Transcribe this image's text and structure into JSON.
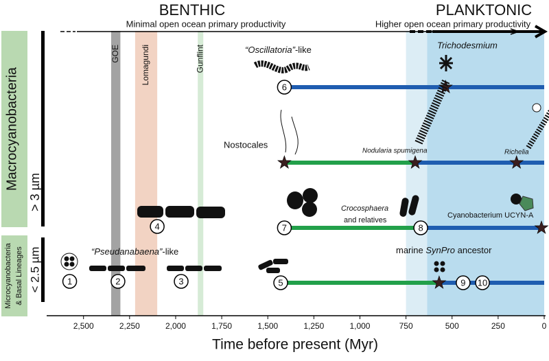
{
  "chart_data": {
    "type": "timeline",
    "headings": {
      "benthic": "BENTHIC",
      "planktonic": "PLANKTONIC"
    },
    "arrow_labels": [
      "Minimal open ocean primary productivity",
      "Higher open ocean primary productivity"
    ],
    "groups": [
      {
        "label": [
          "Macrocyanobacteria"
        ],
        "sublabel": "> 3 µm"
      },
      {
        "label": [
          "Microcyanobacteria",
          "& Basal Lineages"
        ],
        "sublabel": "< 2.5 µm"
      }
    ],
    "x_label": "Time before present (Myr)",
    "xlim": [
      2700,
      0
    ],
    "xticks": [
      {
        "value": 2500,
        "label": "2,500"
      },
      {
        "value": 2250,
        "label": "2,250"
      },
      {
        "value": 2000,
        "label": "2,000"
      },
      {
        "value": 1750,
        "label": "1,750"
      },
      {
        "value": 1500,
        "label": "1,500"
      },
      {
        "value": 1250,
        "label": "1,250"
      },
      {
        "value": 1000,
        "label": "1,000"
      },
      750,
      500,
      250,
      0
    ],
    "events": [
      {
        "name": "GOE",
        "start": 2350,
        "end": 2300,
        "color": "#a3a3a3"
      },
      {
        "name": "Lomagundi",
        "start": 2220,
        "end": 2100,
        "color": "#f2d3c3"
      },
      {
        "name": "Gunflint",
        "start": 1880,
        "end": 1850,
        "color": "#d6ebd6"
      }
    ],
    "planktonic_zones": [
      {
        "start": 750,
        "end": 635,
        "color": "#dcedf5"
      },
      {
        "start": 635,
        "end": 0,
        "color": "#b9dcee"
      }
    ],
    "lineages": [
      {
        "segments": [
          {
            "start": 1410,
            "end": 0,
            "color": "#1f5db0"
          }
        ],
        "stars": [
          535
        ]
      },
      {
        "segments": [
          {
            "start": 1410,
            "end": 700,
            "color": "#22a04a"
          },
          {
            "start": 700,
            "end": 0,
            "color": "#1f5db0"
          }
        ],
        "stars": [
          1410,
          700,
          150
        ]
      },
      {
        "segments": [
          {
            "start": 1410,
            "end": 670,
            "color": "#22a04a"
          },
          {
            "start": 670,
            "end": 0,
            "color": "#1f5db0"
          }
        ],
        "stars": [
          15
        ]
      },
      {
        "segments": [
          {
            "start": 1410,
            "end": 570,
            "color": "#22a04a"
          },
          {
            "start": 570,
            "end": 0,
            "color": "#1f5db0"
          }
        ],
        "stars": [
          570
        ]
      }
    ],
    "nodes": [
      {
        "label": "1",
        "x": 2575
      },
      {
        "label": "2",
        "x": 2313
      },
      {
        "label": "3",
        "x": 1970
      },
      {
        "label": "4",
        "x": 2100
      },
      {
        "label": "5",
        "x": 1430
      },
      {
        "label": "6",
        "x": 1410
      },
      {
        "label": "7",
        "x": 1410
      },
      {
        "label": "8",
        "x": 670
      },
      {
        "label": "9",
        "x": 440
      },
      {
        "label": "10",
        "x": 335
      }
    ],
    "taxa": {
      "oscillatoria": [
        "“Oscillatoria”",
        "-like"
      ],
      "trichodesmium": "Trichodesmium",
      "nostocales": "Nostocales",
      "nodularia": "Nodularia spumigena",
      "richelia": "Richelia",
      "crocosphaera": [
        "Crocosphaera",
        "and relatives"
      ],
      "ucyn": "Cyanobacterium UCYN-A",
      "synpro": [
        "marine ",
        "SynPro",
        " ancestor"
      ],
      "pseudanabaena": [
        "“Pseudanabaena”",
        "-like"
      ]
    }
  }
}
